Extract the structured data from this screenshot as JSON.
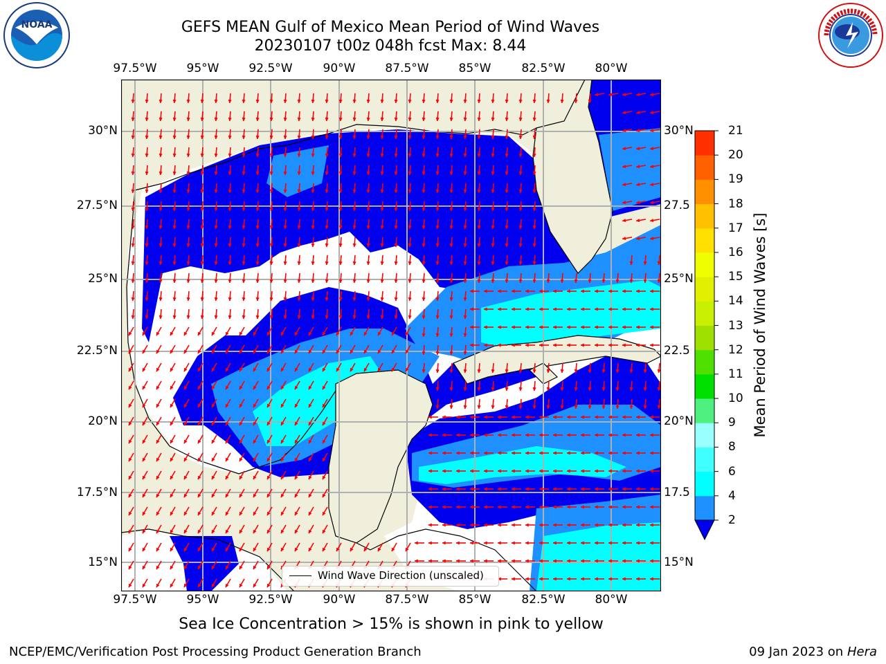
{
  "header": {
    "title_line1": "GEFS MEAN Gulf of Mexico Mean Period of Wind Waves",
    "title_line2": "20230107 t00z 048h fcst   Max: 8.44"
  },
  "logos": {
    "left": {
      "name": "noaa-logo",
      "text": "NOAA",
      "ring_text": "NATIONAL OCEANIC AND ATMOSPHERIC ADMINISTRATION · U.S. DEPARTMENT OF COMMERCE"
    },
    "right": {
      "name": "nws-logo",
      "ring_text": "NATIONAL WEATHER SERVICE"
    }
  },
  "map": {
    "lon_labels": [
      "97.5°W",
      "95°W",
      "92.5°W",
      "90°W",
      "87.5°W",
      "85°W",
      "82.5°W",
      "80°W"
    ],
    "lat_labels_left": [
      "30°N",
      "27.5°N",
      "25°N",
      "22.5°N",
      "20°N",
      "17.5°N",
      "15°N"
    ],
    "lat_labels_right": [
      "30°N",
      "27.5",
      "25°N",
      "22.5",
      "20°N",
      "17.5",
      "15°N"
    ],
    "legend_label": "Wind Wave Direction (unscaled)",
    "colors": {
      "land": "#efefdc",
      "no_data": "#ffffff",
      "wave_2_4": "#0000ee",
      "wave_4_6": "#1e90ff",
      "wave_6_8": "#00ffff",
      "arrow": "#ff0000"
    }
  },
  "colorbar": {
    "title": "Mean Period of Wind Waves [s]",
    "ticks": [
      "2",
      "4",
      "6",
      "8",
      "9",
      "10",
      "11",
      "12",
      "13",
      "14",
      "15",
      "16",
      "17",
      "18",
      "19",
      "20",
      "21"
    ],
    "colors": [
      "#1e90ff",
      "#00ffff",
      "#40ffff",
      "#99ffff",
      "#50f080",
      "#00e000",
      "#50e000",
      "#a0e000",
      "#c8f000",
      "#e0f000",
      "#f0ff00",
      "#ffe000",
      "#ffc000",
      "#ff9000",
      "#ff6000",
      "#ff3000"
    ],
    "extend_color": "#0000ee"
  },
  "footer": {
    "note": "Sea Ice Concentration > 15% is shown in pink to yellow",
    "credit": "NCEP/EMC/Verification Post Processing Product Generation Branch",
    "date": "09 Jan 2023 on",
    "host": "Hera"
  }
}
